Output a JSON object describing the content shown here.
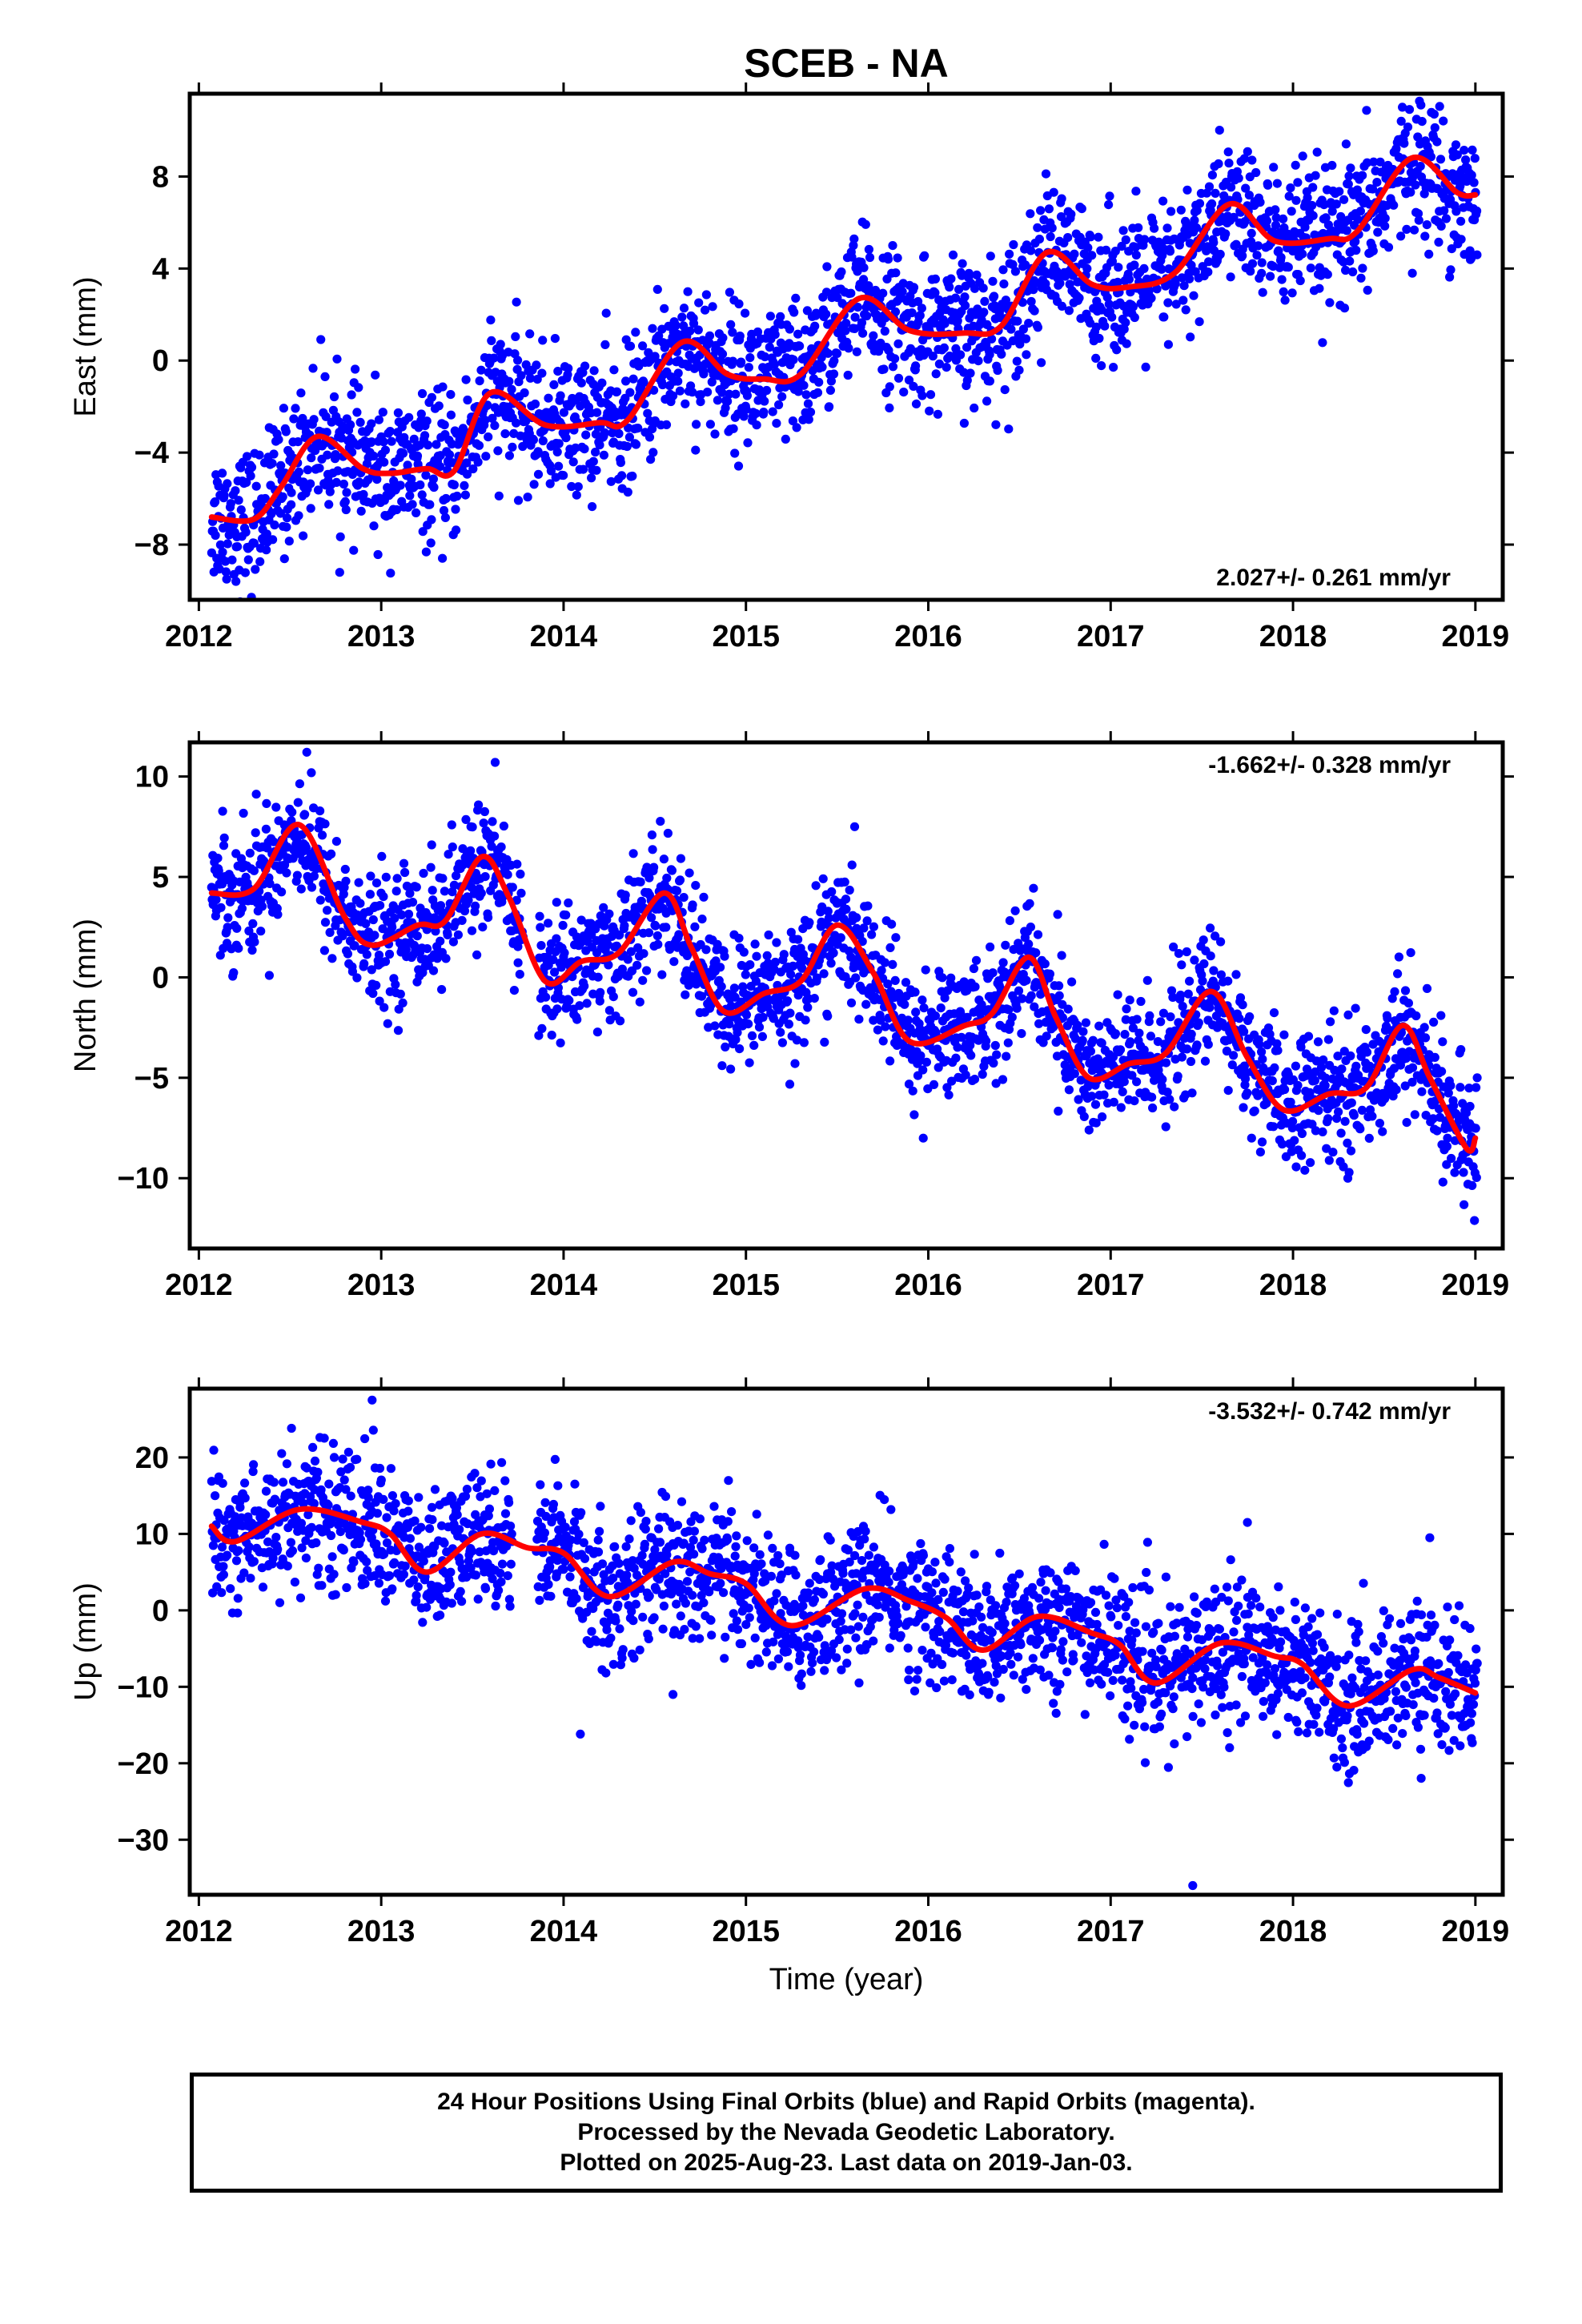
{
  "title": "SCEB - NA",
  "xlabel": "Time (year)",
  "colors": {
    "points": "#0000ff",
    "fit": "#ff0000",
    "frame": "#000000"
  },
  "footer": {
    "line1": "24 Hour Positions Using Final Orbits (blue) and Rapid Orbits (magenta).",
    "line2": "Processed by the Nevada Geodetic Laboratory.",
    "line3": "Plotted on 2025-Aug-23. Last data on 2019-Jan-03."
  },
  "chart_data": [
    {
      "type": "scatter",
      "component": "east",
      "ylabel": "East (mm)",
      "xlim": [
        2011.95,
        2019.15
      ],
      "ylim": [
        -10.4,
        11.6
      ],
      "xticks": [
        2012,
        2013,
        2014,
        2015,
        2016,
        2017,
        2018,
        2019
      ],
      "yticks": [
        -8,
        -4,
        0,
        4,
        8
      ],
      "rate_label": "2.027+/- 0.261 mm/yr",
      "rate_position": "bottom-right",
      "data_start": 2012.07,
      "data_end": 2019.01,
      "scatter_spread": 1.5,
      "fit_curve": [
        [
          2012.07,
          -6.8
        ],
        [
          2012.3,
          -6.9
        ],
        [
          2012.45,
          -5.5
        ],
        [
          2012.65,
          -3.3
        ],
        [
          2012.9,
          -4.7
        ],
        [
          2013.05,
          -4.9
        ],
        [
          2013.25,
          -4.7
        ],
        [
          2013.4,
          -4.8
        ],
        [
          2013.6,
          -1.4
        ],
        [
          2013.9,
          -2.8
        ],
        [
          2014.2,
          -2.7
        ],
        [
          2014.35,
          -2.6
        ],
        [
          2014.65,
          0.8
        ],
        [
          2014.9,
          -0.6
        ],
        [
          2015.1,
          -0.8
        ],
        [
          2015.3,
          -0.6
        ],
        [
          2015.62,
          2.7
        ],
        [
          2015.9,
          1.3
        ],
        [
          2016.2,
          1.2
        ],
        [
          2016.4,
          1.5
        ],
        [
          2016.65,
          4.7
        ],
        [
          2016.9,
          3.3
        ],
        [
          2017.1,
          3.2
        ],
        [
          2017.35,
          3.8
        ],
        [
          2017.65,
          6.8
        ],
        [
          2017.9,
          5.2
        ],
        [
          2018.2,
          5.3
        ],
        [
          2018.35,
          5.6
        ],
        [
          2018.65,
          8.8
        ],
        [
          2018.9,
          7.3
        ],
        [
          2019.0,
          7.2
        ]
      ]
    },
    {
      "type": "scatter",
      "component": "north",
      "ylabel": "North (mm)",
      "xlim": [
        2011.95,
        2019.15
      ],
      "ylim": [
        -13.5,
        11.7
      ],
      "xticks": [
        2012,
        2013,
        2014,
        2015,
        2016,
        2017,
        2018,
        2019
      ],
      "yticks": [
        -10,
        -5,
        0,
        5,
        10
      ],
      "rate_label": "-1.662+/- 0.328 mm/yr",
      "rate_position": "top-right",
      "data_start": 2012.07,
      "data_end": 2019.01,
      "scatter_spread": 1.6,
      "fit_curve": [
        [
          2012.07,
          4.2
        ],
        [
          2012.3,
          4.4
        ],
        [
          2012.55,
          7.6
        ],
        [
          2012.8,
          3.0
        ],
        [
          2012.95,
          1.6
        ],
        [
          2013.2,
          2.6
        ],
        [
          2013.35,
          2.8
        ],
        [
          2013.55,
          6.0
        ],
        [
          2013.7,
          4.0
        ],
        [
          2013.9,
          -0.2
        ],
        [
          2014.1,
          0.8
        ],
        [
          2014.3,
          1.2
        ],
        [
          2014.55,
          4.2
        ],
        [
          2014.7,
          1.5
        ],
        [
          2014.88,
          -1.7
        ],
        [
          2015.1,
          -0.8
        ],
        [
          2015.3,
          -0.2
        ],
        [
          2015.5,
          2.6
        ],
        [
          2015.7,
          0.2
        ],
        [
          2015.9,
          -3.2
        ],
        [
          2016.2,
          -2.4
        ],
        [
          2016.35,
          -1.8
        ],
        [
          2016.55,
          1.0
        ],
        [
          2016.7,
          -2.0
        ],
        [
          2016.88,
          -5.0
        ],
        [
          2017.1,
          -4.3
        ],
        [
          2017.3,
          -3.8
        ],
        [
          2017.55,
          -0.7
        ],
        [
          2017.75,
          -4.0
        ],
        [
          2017.95,
          -6.6
        ],
        [
          2018.2,
          -5.8
        ],
        [
          2018.4,
          -5.5
        ],
        [
          2018.6,
          -2.4
        ],
        [
          2018.75,
          -5.0
        ],
        [
          2018.95,
          -8.5
        ],
        [
          2019.0,
          -8.0
        ]
      ]
    },
    {
      "type": "scatter",
      "component": "up",
      "ylabel": "Up (mm)",
      "xlim": [
        2011.95,
        2019.15
      ],
      "ylim": [
        -37.2,
        29.0
      ],
      "xticks": [
        2012,
        2013,
        2014,
        2015,
        2016,
        2017,
        2018,
        2019
      ],
      "yticks": [
        -30,
        -20,
        -10,
        0,
        10,
        20
      ],
      "rate_label": "-3.532+/- 0.742 mm/yr",
      "rate_position": "top-right",
      "data_start": 2012.07,
      "data_end": 2019.01,
      "scatter_spread": 4.5,
      "fit_curve": [
        [
          2012.07,
          11.0
        ],
        [
          2012.2,
          9.0
        ],
        [
          2012.55,
          13.2
        ],
        [
          2012.9,
          11.5
        ],
        [
          2013.05,
          10.0
        ],
        [
          2013.25,
          5.0
        ],
        [
          2013.55,
          10.0
        ],
        [
          2013.8,
          8.2
        ],
        [
          2014.0,
          7.5
        ],
        [
          2014.25,
          1.8
        ],
        [
          2014.6,
          6.3
        ],
        [
          2014.8,
          4.8
        ],
        [
          2015.0,
          3.5
        ],
        [
          2015.25,
          -2.0
        ],
        [
          2015.65,
          2.8
        ],
        [
          2015.9,
          1.2
        ],
        [
          2016.1,
          -1.0
        ],
        [
          2016.3,
          -5.2
        ],
        [
          2016.6,
          -0.8
        ],
        [
          2016.9,
          -3.0
        ],
        [
          2017.05,
          -4.5
        ],
        [
          2017.25,
          -9.5
        ],
        [
          2017.6,
          -4.3
        ],
        [
          2017.9,
          -6.0
        ],
        [
          2018.05,
          -7.0
        ],
        [
          2018.3,
          -12.5
        ],
        [
          2018.65,
          -7.8
        ],
        [
          2018.8,
          -8.8
        ],
        [
          2019.0,
          -10.8
        ]
      ],
      "outliers": [
        [
          2017.45,
          -36.0
        ],
        [
          2017.75,
          11.5
        ],
        [
          2018.75,
          9.5
        ],
        [
          2014.6,
          -11.0
        ],
        [
          2012.95,
          27.5
        ]
      ]
    }
  ]
}
